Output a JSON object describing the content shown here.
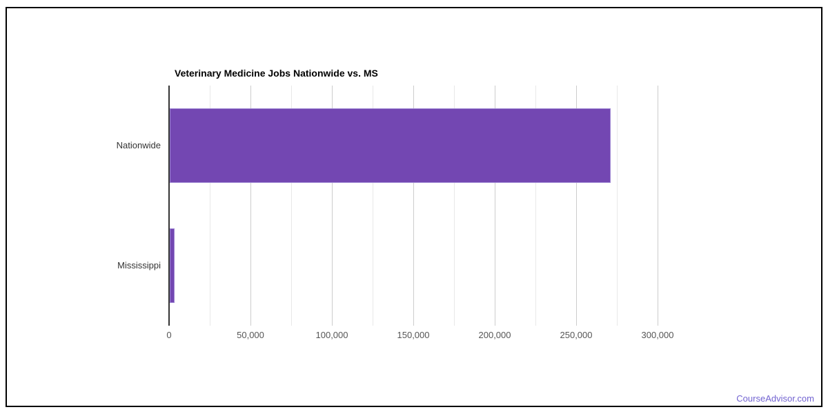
{
  "page": {
    "branding_link": "CourseAdvisor.com"
  },
  "chart_data": {
    "type": "bar",
    "orientation": "horizontal",
    "title": "Veterinary Medicine Jobs Nationwide vs. MS",
    "categories": [
      "Nationwide",
      "Mississippi"
    ],
    "values": [
      271000,
      3400
    ],
    "xlabel": "",
    "ylabel": "",
    "xlim": [
      0,
      300000
    ],
    "x_ticks": [
      {
        "value": 0,
        "label": "0"
      },
      {
        "value": 50000,
        "label": "50,000"
      },
      {
        "value": 100000,
        "label": "100,000"
      },
      {
        "value": 150000,
        "label": "150,000"
      },
      {
        "value": 200000,
        "label": "200,000"
      },
      {
        "value": 250000,
        "label": "250,000"
      },
      {
        "value": 300000,
        "label": "300,000"
      }
    ],
    "minor_gridline_step": 25000,
    "grid": true,
    "legend_position": "none",
    "colors": {
      "bar_fill": "#7347b2",
      "bar_border": "#9d85d2",
      "axis_line": "#333333",
      "major_gridline": "#cccccc",
      "minor_gridline": "#e8e8e8",
      "tick_label": "#555555",
      "category_label": "#333333",
      "title": "#000000",
      "branding": "#7263d1"
    }
  }
}
